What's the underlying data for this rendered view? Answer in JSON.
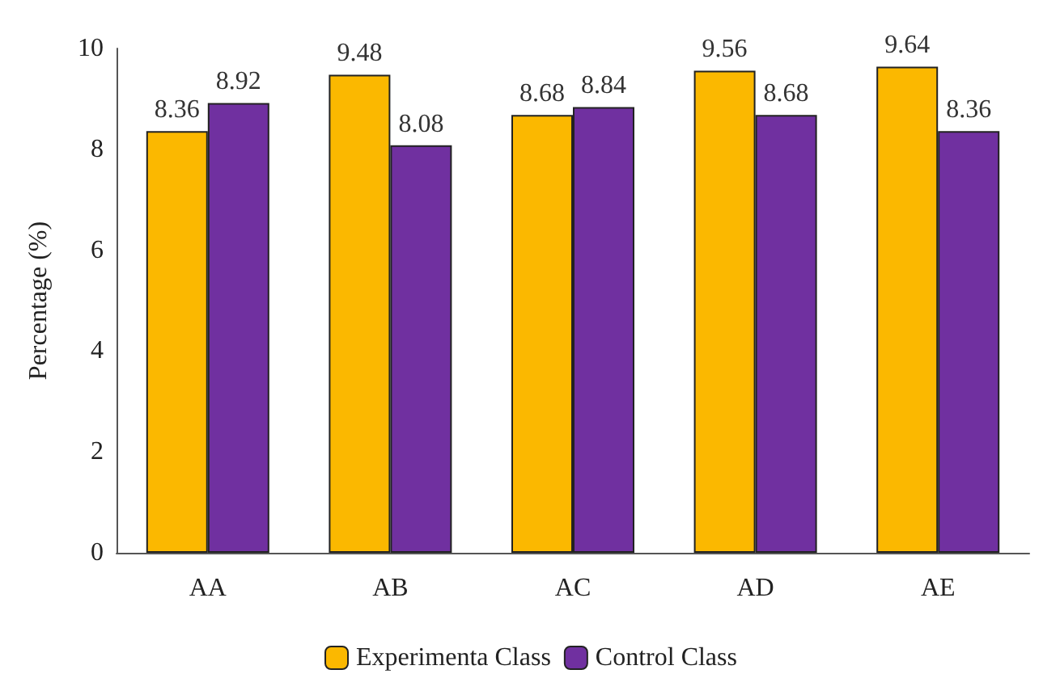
{
  "chart_data": {
    "type": "bar",
    "ylabel": "Percentage (%)",
    "categories": [
      "AA",
      "AB",
      "AC",
      "AD",
      "AE"
    ],
    "series": [
      {
        "name": "Experimenta Class",
        "color": "#fbb800",
        "values": [
          8.36,
          9.48,
          8.68,
          9.56,
          9.64
        ]
      },
      {
        "name": "Control Class",
        "color": "#7030a0",
        "values": [
          8.92,
          8.08,
          8.84,
          8.68,
          8.36
        ]
      }
    ],
    "ylim": [
      0,
      10
    ],
    "yticks": [
      0,
      2,
      4,
      6,
      8,
      10
    ],
    "grid": false,
    "legend": "bottom",
    "data_labels": true
  }
}
